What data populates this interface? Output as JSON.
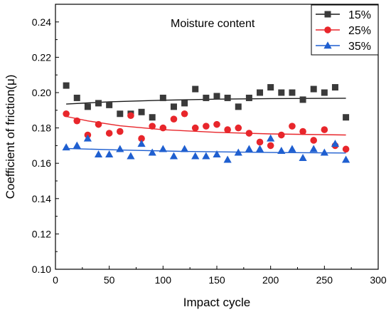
{
  "chart_data": {
    "type": "scatter",
    "annotation": "Moisture content",
    "xlabel": "Impact cycle",
    "ylabel": "Coefficient of friction(μ)",
    "xlim": [
      0,
      300
    ],
    "ylim": [
      0.1,
      0.25
    ],
    "xticks": [
      "0",
      "50",
      "100",
      "150",
      "200",
      "250",
      "300"
    ],
    "yticks": [
      "0.10",
      "0.12",
      "0.14",
      "0.16",
      "0.18",
      "0.20",
      "0.22",
      "0.24"
    ],
    "legend_position": "top-right",
    "grid": false,
    "series": [
      {
        "name": "15%",
        "marker": "square",
        "color": "#3a3a3a",
        "line_color": "#1a1a1a",
        "x": [
          10,
          20,
          30,
          40,
          50,
          60,
          70,
          80,
          90,
          100,
          110,
          120,
          130,
          140,
          150,
          160,
          170,
          180,
          190,
          200,
          210,
          220,
          230,
          240,
          250,
          260,
          270
        ],
        "y": [
          0.204,
          0.197,
          0.192,
          0.194,
          0.193,
          0.188,
          0.188,
          0.189,
          0.186,
          0.197,
          0.192,
          0.194,
          0.202,
          0.197,
          0.198,
          0.197,
          0.192,
          0.197,
          0.2,
          0.203,
          0.2,
          0.2,
          0.196,
          0.202,
          0.2,
          0.203,
          0.186
        ],
        "fit": [
          [
            10,
            0.1935
          ],
          [
            50,
            0.1948
          ],
          [
            100,
            0.1957
          ],
          [
            150,
            0.1963
          ],
          [
            200,
            0.1966
          ],
          [
            270,
            0.1968
          ]
        ]
      },
      {
        "name": "25%",
        "marker": "circle",
        "color": "#e8262b",
        "line_color": "#e8262b",
        "x": [
          10,
          20,
          30,
          40,
          50,
          60,
          70,
          80,
          90,
          100,
          110,
          120,
          130,
          140,
          150,
          160,
          170,
          180,
          190,
          200,
          210,
          220,
          230,
          240,
          250,
          260,
          270
        ],
        "y": [
          0.188,
          0.184,
          0.176,
          0.182,
          0.177,
          0.178,
          0.187,
          0.174,
          0.181,
          0.18,
          0.185,
          0.188,
          0.18,
          0.181,
          0.182,
          0.179,
          0.18,
          0.177,
          0.172,
          0.17,
          0.176,
          0.181,
          0.178,
          0.173,
          0.179,
          0.17,
          0.168
        ],
        "fit": [
          [
            10,
            0.1865
          ],
          [
            30,
            0.184
          ],
          [
            60,
            0.1812
          ],
          [
            100,
            0.179
          ],
          [
            150,
            0.1775
          ],
          [
            200,
            0.1766
          ],
          [
            270,
            0.176
          ]
        ]
      },
      {
        "name": "35%",
        "marker": "triangle",
        "color": "#1f5fd0",
        "line_color": "#1f5fd0",
        "x": [
          10,
          20,
          30,
          40,
          50,
          60,
          70,
          80,
          90,
          100,
          110,
          120,
          130,
          140,
          150,
          160,
          170,
          180,
          190,
          200,
          210,
          220,
          230,
          240,
          250,
          260,
          270
        ],
        "y": [
          0.169,
          0.17,
          0.174,
          0.165,
          0.165,
          0.168,
          0.164,
          0.171,
          0.166,
          0.168,
          0.164,
          0.168,
          0.164,
          0.164,
          0.165,
          0.162,
          0.166,
          0.168,
          0.168,
          0.174,
          0.167,
          0.168,
          0.163,
          0.168,
          0.166,
          0.171,
          0.162
        ],
        "fit": [
          [
            10,
            0.1684
          ],
          [
            60,
            0.1675
          ],
          [
            120,
            0.1667
          ],
          [
            200,
            0.1661
          ],
          [
            270,
            0.1658
          ]
        ]
      }
    ]
  }
}
